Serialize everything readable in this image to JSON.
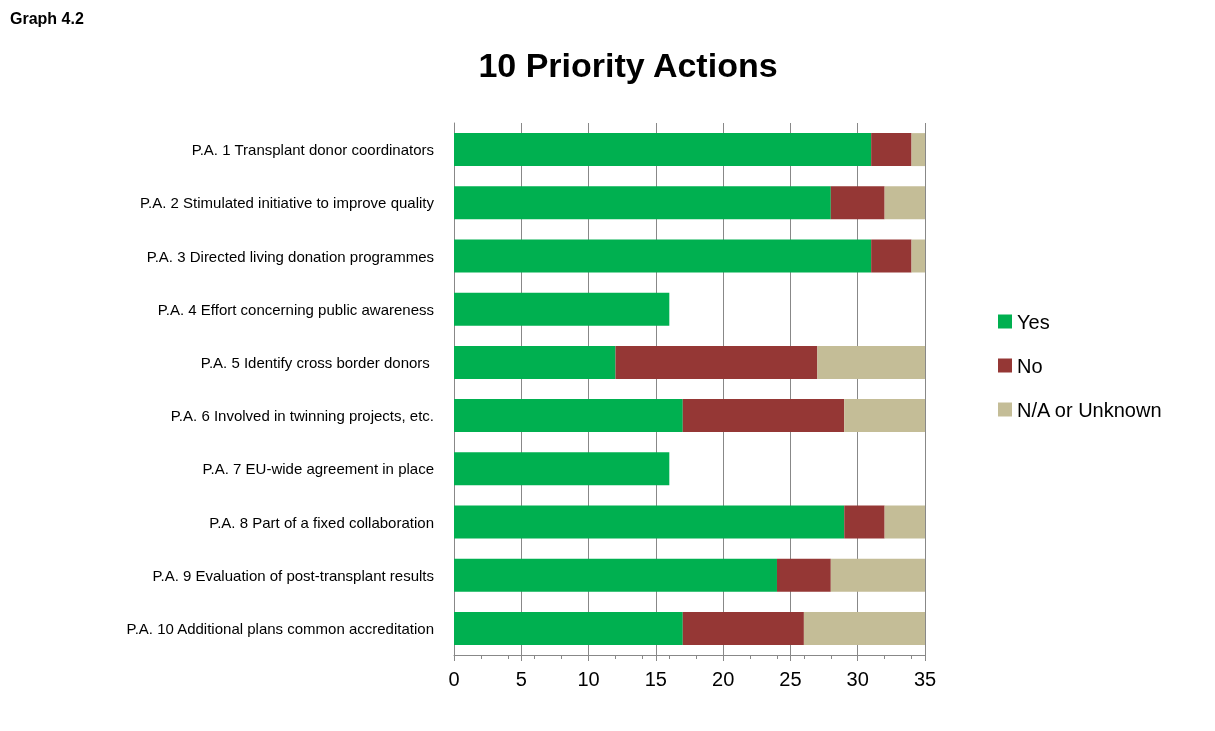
{
  "chart_data": {
    "type": "bar",
    "title": "10 Priority Actions",
    "annotations": [
      "Graph 4.2"
    ],
    "orientation": "horizontal",
    "stacked": true,
    "categories": [
      "P.A. 1 Transplant donor coordinators",
      "P.A. 2 Stimulated initiative to improve quality",
      "P.A. 3 Directed living donation programmes",
      "P.A. 4 Effort concerning public awareness",
      "P.A. 5 Identify cross border donors ",
      "P.A. 6 Involved in twinning projects, etc.",
      "P.A. 7 EU-wide agreement in place",
      "P.A. 8 Part of a fixed collaboration",
      "P.A. 9 Evaluation of post-transplant results",
      "P.A. 10 Additional plans common accreditation"
    ],
    "series": [
      {
        "name": "Yes",
        "color": "#00b050",
        "values": [
          31,
          28,
          31,
          16,
          12,
          17,
          16,
          29,
          24,
          17
        ]
      },
      {
        "name": "No",
        "color": "#953735",
        "values": [
          3,
          4,
          3,
          0,
          15,
          12,
          0,
          3,
          4,
          9
        ]
      },
      {
        "name": "N/A or Unknown",
        "color": "#c4bd97",
        "values": [
          1,
          3,
          1,
          0,
          8,
          6,
          0,
          3,
          7,
          9
        ]
      }
    ],
    "xlim": [
      0,
      35
    ],
    "xticks": [
      0,
      5,
      10,
      15,
      20,
      25,
      30,
      35
    ],
    "grid": "x",
    "legend": "right"
  }
}
